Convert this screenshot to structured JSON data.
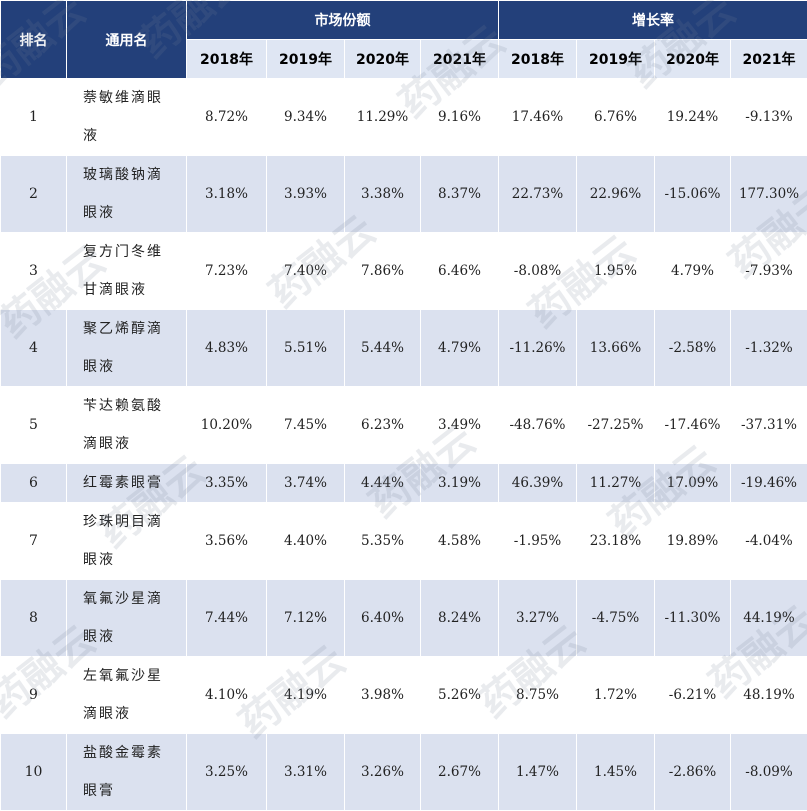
{
  "header": {
    "rank": "排名",
    "name": "通用名",
    "group_share": "市场份额",
    "group_growth": "增长率",
    "years": [
      "2018年",
      "2019年",
      "2020年",
      "2021年"
    ]
  },
  "rows": [
    {
      "rank": "1",
      "name_lines": [
        "萘敏维滴眼",
        "液"
      ],
      "share": [
        "8.72%",
        "9.34%",
        "11.29%",
        "9.16%"
      ],
      "growth": [
        "17.46%",
        "6.76%",
        "19.24%",
        "-9.13%"
      ]
    },
    {
      "rank": "2",
      "name_lines": [
        "玻璃酸钠滴",
        "眼液"
      ],
      "share": [
        "3.18%",
        "3.93%",
        "3.38%",
        "8.37%"
      ],
      "growth": [
        "22.73%",
        "22.96%",
        "-15.06%",
        "177.30%"
      ]
    },
    {
      "rank": "3",
      "name_lines": [
        "复方门冬维",
        "甘滴眼液"
      ],
      "share": [
        "7.23%",
        "7.40%",
        "7.86%",
        "6.46%"
      ],
      "growth": [
        "-8.08%",
        "1.95%",
        "4.79%",
        "-7.93%"
      ]
    },
    {
      "rank": "4",
      "name_lines": [
        "聚乙烯醇滴",
        "眼液"
      ],
      "share": [
        "4.83%",
        "5.51%",
        "5.44%",
        "4.79%"
      ],
      "growth": [
        "-11.26%",
        "13.66%",
        "-2.58%",
        "-1.32%"
      ]
    },
    {
      "rank": "5",
      "name_lines": [
        "苄达赖氨酸",
        "滴眼液"
      ],
      "share": [
        "10.20%",
        "7.45%",
        "6.23%",
        "3.49%"
      ],
      "growth": [
        "-48.76%",
        "-27.25%",
        "-17.46%",
        "-37.31%"
      ]
    },
    {
      "rank": "6",
      "name_lines": [
        "红霉素眼膏"
      ],
      "share": [
        "3.35%",
        "3.74%",
        "4.44%",
        "3.19%"
      ],
      "growth": [
        "46.39%",
        "11.27%",
        "17.09%",
        "-19.46%"
      ]
    },
    {
      "rank": "7",
      "name_lines": [
        "珍珠明目滴",
        "眼液"
      ],
      "share": [
        "3.56%",
        "4.40%",
        "5.35%",
        "4.58%"
      ],
      "growth": [
        "-1.95%",
        "23.18%",
        "19.89%",
        "-4.04%"
      ]
    },
    {
      "rank": "8",
      "name_lines": [
        "氧氟沙星滴",
        "眼液"
      ],
      "share": [
        "7.44%",
        "7.12%",
        "6.40%",
        "8.24%"
      ],
      "growth": [
        "3.27%",
        "-4.75%",
        "-11.30%",
        "44.19%"
      ]
    },
    {
      "rank": "9",
      "name_lines": [
        "左氧氟沙星",
        "滴眼液"
      ],
      "share": [
        "4.10%",
        "4.19%",
        "3.98%",
        "5.26%"
      ],
      "growth": [
        "8.75%",
        "1.72%",
        "-6.21%",
        "48.19%"
      ]
    },
    {
      "rank": "10",
      "name_lines": [
        "盐酸金霉素",
        "眼膏"
      ],
      "share": [
        "3.25%",
        "3.31%",
        "3.26%",
        "2.67%"
      ],
      "growth": [
        "1.47%",
        "1.45%",
        "-2.86%",
        "-8.09%"
      ]
    }
  ],
  "watermark": {
    "text": "药融云"
  }
}
